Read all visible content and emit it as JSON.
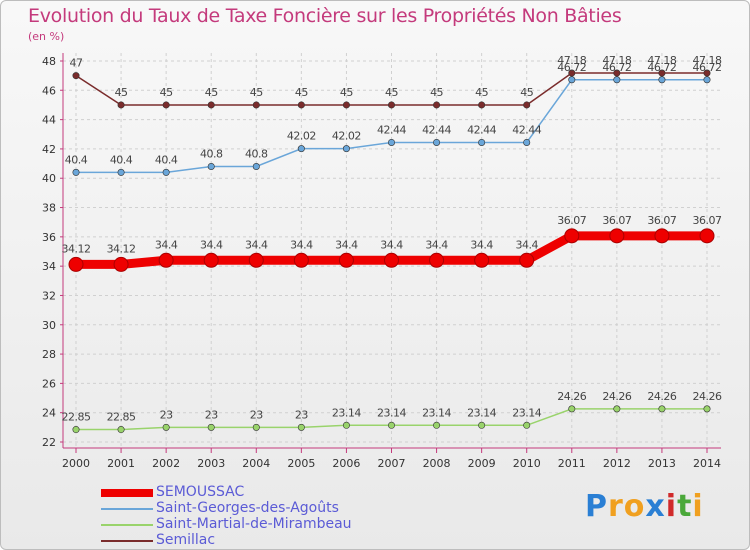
{
  "chart_data": {
    "type": "line",
    "title": "Evolution du Taux de Taxe Foncière sur les Propriétés Non Bâties",
    "ylabel": "(en %)",
    "xlabel": "",
    "ylim": [
      22,
      48
    ],
    "yticks": [
      22,
      24,
      26,
      28,
      30,
      32,
      34,
      36,
      38,
      40,
      42,
      44,
      46,
      48
    ],
    "categories": [
      "2000",
      "2001",
      "2002",
      "2003",
      "2004",
      "2005",
      "2006",
      "2007",
      "2008",
      "2009",
      "2010",
      "2011",
      "2012",
      "2013",
      "2014"
    ],
    "series": [
      {
        "name": "SEMOUSSAC",
        "color": "#ee0000",
        "values": [
          34.12,
          34.12,
          34.4,
          34.4,
          34.4,
          34.4,
          34.4,
          34.4,
          34.4,
          34.4,
          34.4,
          36.07,
          36.07,
          36.07,
          36.07
        ],
        "labels": [
          "34.12",
          "34.12",
          "34.4",
          "34.4",
          "34.4",
          "34.4",
          "34.4",
          "34.4",
          "34.4",
          "34.4",
          "34.4",
          "36.07",
          "36.07",
          "36.07",
          "36.07"
        ]
      },
      {
        "name": "Saint-Georges-des-Agoûts",
        "color": "#6aa6d9",
        "values": [
          40.4,
          40.4,
          40.4,
          40.8,
          40.8,
          42.02,
          42.02,
          42.44,
          42.44,
          42.44,
          42.44,
          46.72,
          46.72,
          46.72,
          46.72
        ],
        "labels": [
          "40.4",
          "40.4",
          "40.4",
          "40.8",
          "40.8",
          "42.02",
          "42.02",
          "42.44",
          "42.44",
          "42.44",
          "42.44",
          "46.72",
          "46.72",
          "46.72",
          "46.72"
        ]
      },
      {
        "name": "Saint-Martial-de-Mirambeau",
        "color": "#99d36b",
        "values": [
          22.85,
          22.85,
          23,
          23,
          23,
          23,
          23.14,
          23.14,
          23.14,
          23.14,
          23.14,
          24.26,
          24.26,
          24.26,
          24.26
        ],
        "labels": [
          "22.85",
          "22.85",
          "23",
          "23",
          "23",
          "23",
          "23.14",
          "23.14",
          "23.14",
          "23.14",
          "23.14",
          "24.26",
          "24.26",
          "24.26",
          "24.26"
        ]
      },
      {
        "name": "Semillac",
        "color": "#7a2c2c",
        "values": [
          47,
          45,
          45,
          45,
          45,
          45,
          45,
          45,
          45,
          45,
          45,
          47.18,
          47.18,
          47.18,
          47.18
        ],
        "labels": [
          "47",
          "45",
          "45",
          "45",
          "45",
          "45",
          "45",
          "45",
          "45",
          "45",
          "45",
          "47.18",
          "47.18",
          "47.18",
          "47.18"
        ]
      }
    ]
  },
  "brand": {
    "letters": [
      "P",
      "r",
      "o",
      "x",
      "i",
      "t",
      "i"
    ],
    "colors": [
      "#2a7fd4",
      "#f0a020",
      "#f0a020",
      "#2a7fd4",
      "#d02a2a",
      "#4aa83a",
      "#f0a020"
    ]
  }
}
